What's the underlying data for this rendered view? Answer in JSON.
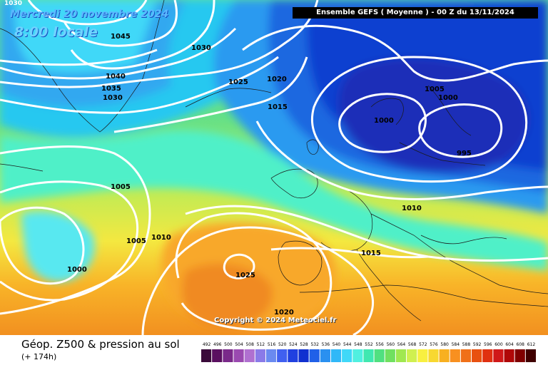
{
  "header": {
    "date": "Mercredi 20 novembre 2024",
    "time": "8:00 locale",
    "corner_label": "1030",
    "ensemble": "Ensemble GEFS  ( Moyenne )  -  00 Z du 13/11/2024"
  },
  "copyright": "Copyright © 2024 Meteociel.fr",
  "footer": {
    "title": "Géop. Z500 & pression au sol",
    "subtitle": "(+ 174h)"
  },
  "isobar_labels": [
    "1045",
    "1030",
    "1040",
    "1035",
    "1030",
    "1025",
    "1020",
    "1015",
    "1005",
    "1000",
    "995",
    "1000",
    "1005",
    "1005",
    "1010",
    "1000",
    "1010",
    "1015",
    "1025",
    "1020"
  ],
  "scale_ticks": [
    "492",
    "496",
    "500",
    "504",
    "508",
    "512",
    "516",
    "520",
    "524",
    "528",
    "532",
    "536",
    "540",
    "544",
    "548",
    "552",
    "556",
    "560",
    "564",
    "568",
    "572",
    "576",
    "580",
    "584",
    "588",
    "592",
    "596",
    "600",
    "604",
    "608",
    "612"
  ],
  "scale_colors": [
    "#3a0a3a",
    "#5a1060",
    "#7a2a8a",
    "#9a4ab0",
    "#b070d0",
    "#8a7ae8",
    "#6a8af0",
    "#4060f0",
    "#2040e0",
    "#1030d0",
    "#2060e8",
    "#2a90f0",
    "#30b8f8",
    "#40d8f8",
    "#50f0e0",
    "#40e8b0",
    "#50e080",
    "#70e060",
    "#a0e850",
    "#d0f050",
    "#f8f040",
    "#f8d830",
    "#f8b020",
    "#f89020",
    "#f07018",
    "#e85010",
    "#e03010",
    "#d01818",
    "#b00808",
    "#800000",
    "#400000"
  ]
}
